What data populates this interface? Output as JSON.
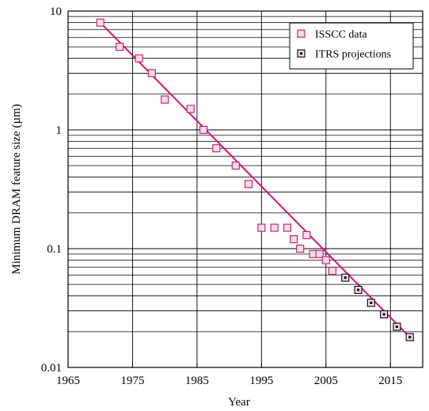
{
  "chart_data": {
    "type": "scatter",
    "title": "",
    "xlabel": "Year",
    "ylabel": "Minimum DRAM feature size (µm)",
    "x_scale": "linear",
    "y_scale": "log",
    "xlim": [
      1965,
      2020
    ],
    "ylim": [
      0.01,
      10
    ],
    "x_ticks": [
      1965,
      1975,
      1985,
      1995,
      2005,
      2015
    ],
    "x_tick_labels": [
      "1965",
      "1975",
      "1985",
      "1995",
      "2005",
      "2015"
    ],
    "y_ticks": [
      0.01,
      0.1,
      1,
      10
    ],
    "y_tick_labels": [
      "0.01",
      "0.1",
      "1",
      "10"
    ],
    "grid": true,
    "legend_position": "top-right",
    "series": [
      {
        "name": "ISSCC data",
        "marker": "open-square",
        "color": "#c0186a",
        "fill": "#f2dce6",
        "points": [
          [
            1970,
            8.0
          ],
          [
            1973,
            5.0
          ],
          [
            1976,
            4.0
          ],
          [
            1978,
            3.0
          ],
          [
            1980,
            1.8
          ],
          [
            1984,
            1.5
          ],
          [
            1986,
            1.0
          ],
          [
            1988,
            0.7
          ],
          [
            1991,
            0.5
          ],
          [
            1993,
            0.35
          ],
          [
            1995,
            0.15
          ],
          [
            1997,
            0.15
          ],
          [
            1999,
            0.15
          ],
          [
            2000,
            0.12
          ],
          [
            2001,
            0.1
          ],
          [
            2002,
            0.13
          ],
          [
            2003,
            0.09
          ],
          [
            2004,
            0.09
          ],
          [
            2005,
            0.08
          ],
          [
            2006,
            0.065
          ]
        ]
      },
      {
        "name": "ITRS projections",
        "marker": "dotted-square",
        "color": "#000000",
        "fill": "#f2dce6",
        "points": [
          [
            2008,
            0.057
          ],
          [
            2010,
            0.045
          ],
          [
            2012,
            0.035
          ],
          [
            2014,
            0.028
          ],
          [
            2016,
            0.022
          ],
          [
            2018,
            0.018
          ]
        ]
      }
    ],
    "trend_line": {
      "color": "#d4147a",
      "from": [
        1970,
        8.0
      ],
      "to": [
        2018,
        0.018
      ]
    }
  }
}
